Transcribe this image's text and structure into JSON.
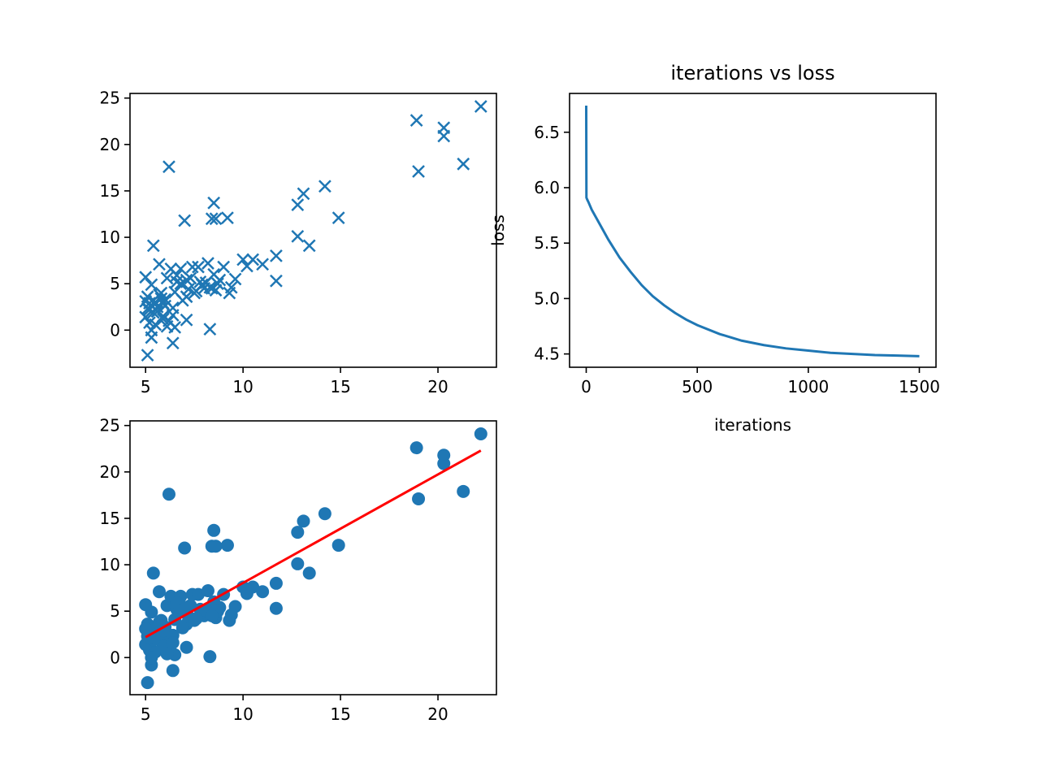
{
  "figure": {
    "background": "#ffffff"
  },
  "chart_data": [
    {
      "type": "scatter",
      "title": "",
      "xlabel": "",
      "ylabel": "",
      "marker": "x",
      "color": "#1f77b4",
      "xlim": [
        4.2,
        23.0
      ],
      "ylim": [
        -4.0,
        25.5
      ],
      "xticks": [
        5,
        10,
        15,
        20
      ],
      "yticks": [
        0,
        5,
        10,
        15,
        20,
        25
      ],
      "x": [
        5.0,
        5.1,
        5.2,
        5.2,
        5.3,
        5.1,
        5.3,
        5.5,
        5.4,
        5.6,
        5.8,
        5.7,
        5.9,
        6.0,
        6.1,
        6.2,
        6.3,
        6.4,
        6.5,
        6.6,
        6.8,
        7.0,
        7.1,
        7.2,
        7.4,
        7.5,
        7.7,
        7.8,
        8.0,
        8.2,
        8.3,
        8.4,
        8.5,
        8.6,
        8.8,
        9.0,
        9.2,
        9.3,
        9.6,
        10.0,
        10.2,
        10.5,
        11.0,
        11.7,
        11.7,
        12.8,
        12.8,
        13.1,
        13.4,
        14.2,
        14.9,
        18.9,
        19.0,
        20.3,
        20.3,
        21.3,
        22.2,
        5.9,
        6.0,
        5.1,
        5.0,
        6.4,
        6.6,
        6.2,
        7.1,
        5.5,
        5.6,
        5.7,
        6.9,
        8.3,
        8.5,
        8.6,
        5.3,
        5.4,
        5.8,
        6.1,
        7.9,
        8.1,
        8.7,
        9.4,
        6.8,
        7.6,
        8.4,
        5.0,
        5.2,
        6.5,
        7.3,
        5.9,
        6.4,
        7.1
      ],
      "y": [
        5.7,
        3.6,
        2.9,
        0.8,
        -0.8,
        -2.7,
        4.9,
        3.0,
        9.1,
        2.0,
        4.0,
        7.1,
        1.5,
        3.3,
        5.6,
        1.0,
        6.6,
        -1.4,
        0.3,
        5.2,
        6.6,
        11.8,
        3.6,
        4.4,
        6.8,
        4.0,
        6.8,
        5.2,
        4.5,
        7.2,
        0.1,
        12.0,
        13.7,
        12.0,
        5.4,
        6.8,
        12.1,
        4.0,
        5.5,
        7.6,
        6.9,
        7.6,
        7.1,
        8.0,
        5.3,
        13.5,
        10.1,
        14.7,
        9.1,
        15.5,
        12.1,
        22.6,
        17.1,
        21.8,
        20.9,
        17.9,
        24.1,
        1.2,
        2.6,
        2.3,
        1.4,
        2.4,
        5.9,
        17.6,
        1.1,
        0.6,
        2.5,
        3.8,
        3.2,
        4.6,
        6.0,
        4.3,
        0.0,
        1.9,
        3.4,
        0.4,
        4.9,
        5.1,
        5.0,
        4.6,
        5.0,
        4.2,
        4.5,
        3.1,
        2.2,
        4.1,
        5.6,
        2.9,
        1.6,
        5.4
      ]
    },
    {
      "type": "line",
      "title": "iterations vs loss",
      "xlabel": "iterations",
      "ylabel": "loss",
      "color": "#1f77b4",
      "xlim": [
        -75,
        1575
      ],
      "ylim": [
        4.38,
        6.85
      ],
      "xticks": [
        0,
        500,
        1000,
        1500
      ],
      "yticks": [
        4.5,
        5.0,
        5.5,
        6.0,
        6.5
      ],
      "ytick_labels": [
        "4.5",
        "5.0",
        "5.5",
        "6.0",
        "6.5"
      ],
      "x": [
        0,
        1,
        5,
        10,
        25,
        50,
        100,
        150,
        200,
        250,
        300,
        350,
        400,
        450,
        500,
        600,
        700,
        800,
        900,
        1000,
        1100,
        1200,
        1300,
        1400,
        1500
      ],
      "y": [
        6.74,
        5.91,
        5.89,
        5.87,
        5.8,
        5.71,
        5.53,
        5.37,
        5.24,
        5.12,
        5.02,
        4.94,
        4.87,
        4.81,
        4.76,
        4.68,
        4.62,
        4.58,
        4.55,
        4.53,
        4.51,
        4.5,
        4.49,
        4.485,
        4.48
      ]
    },
    {
      "type": "scatter",
      "title": "",
      "xlabel": "",
      "ylabel": "",
      "marker": "o",
      "color": "#1f77b4",
      "xlim": [
        4.2,
        23.0
      ],
      "ylim": [
        -4.0,
        25.5
      ],
      "xticks": [
        5,
        10,
        15,
        20
      ],
      "yticks": [
        0,
        5,
        10,
        15,
        20,
        25
      ],
      "x": [
        5.0,
        5.1,
        5.2,
        5.2,
        5.3,
        5.1,
        5.3,
        5.5,
        5.4,
        5.6,
        5.8,
        5.7,
        5.9,
        6.0,
        6.1,
        6.2,
        6.3,
        6.4,
        6.5,
        6.6,
        6.8,
        7.0,
        7.1,
        7.2,
        7.4,
        7.5,
        7.7,
        7.8,
        8.0,
        8.2,
        8.3,
        8.4,
        8.5,
        8.6,
        8.8,
        9.0,
        9.2,
        9.3,
        9.6,
        10.0,
        10.2,
        10.5,
        11.0,
        11.7,
        11.7,
        12.8,
        12.8,
        13.1,
        13.4,
        14.2,
        14.9,
        18.9,
        19.0,
        20.3,
        20.3,
        21.3,
        22.2,
        5.9,
        6.0,
        5.1,
        5.0,
        6.4,
        6.6,
        6.2,
        7.1,
        5.5,
        5.6,
        5.7,
        6.9,
        8.3,
        8.5,
        8.6,
        5.3,
        5.4,
        5.8,
        6.1,
        7.9,
        8.1,
        8.7,
        9.4,
        6.8,
        7.6,
        8.4,
        5.0,
        5.2,
        6.5,
        7.3,
        5.9,
        6.4,
        7.1
      ],
      "y": [
        5.7,
        3.6,
        2.9,
        0.8,
        -0.8,
        -2.7,
        4.9,
        3.0,
        9.1,
        2.0,
        4.0,
        7.1,
        1.5,
        3.3,
        5.6,
        1.0,
        6.6,
        -1.4,
        0.3,
        5.2,
        6.6,
        11.8,
        3.6,
        4.4,
        6.8,
        4.0,
        6.8,
        5.2,
        4.5,
        7.2,
        0.1,
        12.0,
        13.7,
        12.0,
        5.4,
        6.8,
        12.1,
        4.0,
        5.5,
        7.6,
        6.9,
        7.6,
        7.1,
        8.0,
        5.3,
        13.5,
        10.1,
        14.7,
        9.1,
        15.5,
        12.1,
        22.6,
        17.1,
        21.8,
        20.9,
        17.9,
        24.1,
        1.2,
        2.6,
        2.3,
        1.4,
        2.4,
        5.9,
        17.6,
        1.1,
        0.6,
        2.5,
        3.8,
        3.2,
        4.6,
        6.0,
        4.3,
        0.0,
        1.9,
        3.4,
        0.4,
        4.9,
        5.1,
        5.0,
        4.6,
        5.0,
        4.2,
        4.5,
        3.1,
        2.2,
        4.1,
        5.6,
        2.9,
        1.6,
        5.4
      ],
      "fit_line": {
        "color": "#ff0000",
        "x": [
          5.0,
          22.2
        ],
        "y": [
          2.2,
          22.3
        ]
      }
    }
  ]
}
